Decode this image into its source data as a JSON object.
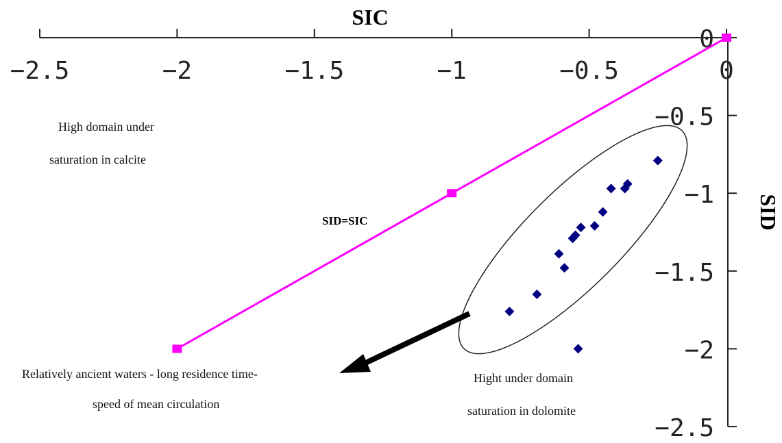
{
  "chart_data": {
    "type": "scatter",
    "xlabel": "SIC",
    "ylabel": "SID",
    "xlim": [
      -2.5,
      0
    ],
    "ylim": [
      -2.5,
      0
    ],
    "x_ticks": [
      "-2.5",
      "-2",
      "-1.5",
      "-1",
      "-0.5",
      "0"
    ],
    "y_ticks": [
      "0",
      "-0.5",
      "-1",
      "-1.5",
      "-2",
      "-2.5"
    ],
    "reference_line": {
      "label": "SID=SIC",
      "color": "#ff00ff",
      "points": [
        {
          "x": -2,
          "y": -2
        },
        {
          "x": -1,
          "y": -1
        },
        {
          "x": 0,
          "y": 0
        }
      ]
    },
    "series": [
      {
        "color": "#000080",
        "points": [
          {
            "x": -0.25,
            "y": -0.79
          },
          {
            "x": -0.36,
            "y": -0.94
          },
          {
            "x": -0.37,
            "y": -0.97
          },
          {
            "x": -0.42,
            "y": -0.97
          },
          {
            "x": -0.45,
            "y": -1.12
          },
          {
            "x": -0.48,
            "y": -1.21
          },
          {
            "x": -0.53,
            "y": -1.22
          },
          {
            "x": -0.55,
            "y": -1.27
          },
          {
            "x": -0.56,
            "y": -1.29
          },
          {
            "x": -0.59,
            "y": -1.48
          },
          {
            "x": -0.61,
            "y": -1.39
          },
          {
            "x": -0.69,
            "y": -1.65
          },
          {
            "x": -0.79,
            "y": -1.76
          },
          {
            "x": -0.54,
            "y": -2.0
          }
        ]
      }
    ],
    "annotations": {
      "calcite_line1": "High domain under",
      "calcite_line2": "saturation in calcite",
      "ancient_line1": "Relatively ancient waters - long residence time-",
      "ancient_line2": "speed of mean circulation",
      "dolomite_line1": "Hight under domain",
      "dolomite_line2": "saturation in dolomite"
    },
    "grid": false
  }
}
